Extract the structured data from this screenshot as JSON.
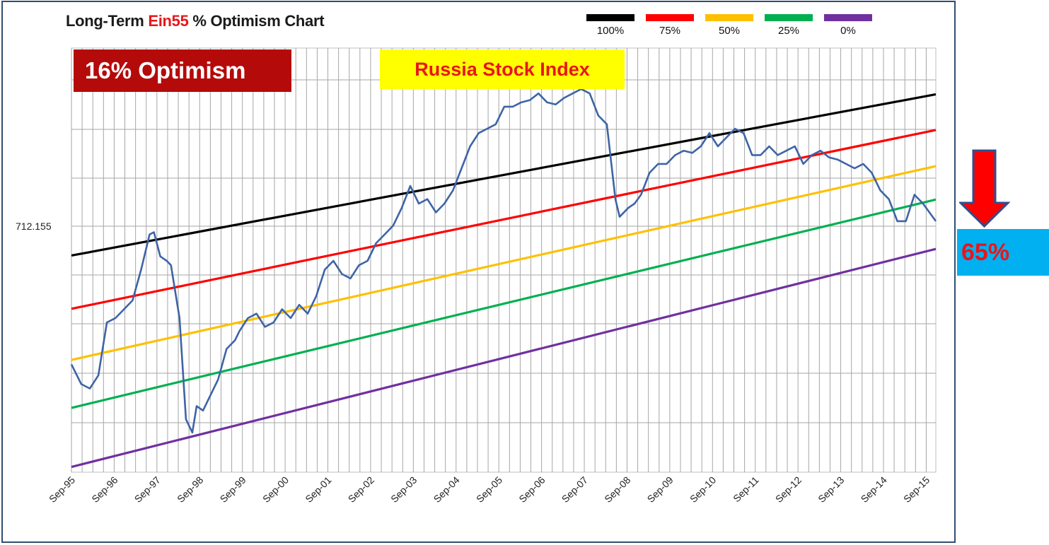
{
  "title": {
    "prefix": "Long-Term ",
    "highlight": "Ein55",
    "suffix": " % Optimism Chart"
  },
  "legend": [
    {
      "label": "100%",
      "color": "#000000"
    },
    {
      "label": "75%",
      "color": "#ff0000"
    },
    {
      "label": "50%",
      "color": "#ffc000"
    },
    {
      "label": "25%",
      "color": "#00b050"
    },
    {
      "label": "0%",
      "color": "#7030a0"
    }
  ],
  "optimism_badge": "16% Optimism",
  "index_badge": "Russia Stock Index",
  "right_badge": "65%",
  "colors": {
    "index_line": "#3e64a6",
    "grid": "#a6a6a6",
    "optimism_bg": "#b50a0a",
    "index_bg": "#ffff00",
    "right_bg": "#00b0f0",
    "arrow": "#ff0000"
  },
  "icons": {
    "arrow": "down-arrow-icon"
  },
  "chart_data": {
    "type": "line",
    "title": "Long-Term Ein55 % Optimism Chart",
    "y_tick_label": "712.155",
    "x_tick_labels": [
      "Sep-95",
      "Sep-96",
      "Sep-97",
      "Sep-98",
      "Sep-99",
      "Sep-00",
      "Sep-01",
      "Sep-02",
      "Sep-03",
      "Sep-04",
      "Sep-05",
      "Sep-06",
      "Sep-07",
      "Sep-08",
      "Sep-09",
      "Sep-10",
      "Sep-11",
      "Sep-12",
      "Sep-13",
      "Sep-14",
      "Sep-15"
    ],
    "x_range": [
      1995.67,
      2015.9
    ],
    "y_range_chart_units": [
      0,
      1000
    ],
    "grid": true,
    "legend_position": "top-right",
    "channel_lines": [
      {
        "name": "100%",
        "start": 492,
        "end": 858
      },
      {
        "name": "75%",
        "start": 371,
        "end": 777
      },
      {
        "name": "50%",
        "start": 255,
        "end": 695
      },
      {
        "name": "25%",
        "start": 146,
        "end": 619
      },
      {
        "name": "0%",
        "start": 12,
        "end": 507
      }
    ],
    "series": [
      {
        "name": "Russia Stock Index",
        "x": [
          1995.67,
          1995.9,
          1996.1,
          1996.3,
          1996.5,
          1996.7,
          1996.9,
          1997.1,
          1997.3,
          1997.5,
          1997.6,
          1997.75,
          1997.9,
          1998.0,
          1998.2,
          1998.35,
          1998.5,
          1998.6,
          1998.75,
          1998.9,
          1999.1,
          1999.3,
          1999.5,
          1999.6,
          1999.8,
          2000.0,
          2000.2,
          2000.4,
          2000.6,
          2000.8,
          2001.0,
          2001.2,
          2001.4,
          2001.6,
          2001.8,
          2002.0,
          2002.2,
          2002.4,
          2002.6,
          2002.8,
          2003.0,
          2003.2,
          2003.4,
          2003.6,
          2003.8,
          2004.0,
          2004.2,
          2004.4,
          2004.6,
          2004.8,
          2005.0,
          2005.2,
          2005.4,
          2005.6,
          2005.8,
          2006.0,
          2006.2,
          2006.4,
          2006.6,
          2006.8,
          2007.0,
          2007.2,
          2007.4,
          2007.6,
          2007.8,
          2008.0,
          2008.2,
          2008.4,
          2008.5,
          2008.7,
          2008.85,
          2009.0,
          2009.2,
          2009.4,
          2009.6,
          2009.8,
          2010.0,
          2010.2,
          2010.4,
          2010.6,
          2010.8,
          2011.0,
          2011.2,
          2011.4,
          2011.6,
          2011.8,
          2012.0,
          2012.2,
          2012.4,
          2012.6,
          2012.8,
          2013.0,
          2013.2,
          2013.4,
          2013.6,
          2013.8,
          2014.0,
          2014.2,
          2014.4,
          2014.6,
          2014.8,
          2015.0,
          2015.2,
          2015.4,
          2015.6,
          2015.9
        ],
        "y": [
          245,
          200,
          190,
          220,
          340,
          350,
          370,
          390,
          460,
          540,
          545,
          490,
          480,
          470,
          350,
          120,
          90,
          150,
          140,
          170,
          210,
          280,
          300,
          320,
          350,
          360,
          330,
          340,
          370,
          350,
          380,
          360,
          400,
          460,
          480,
          450,
          440,
          470,
          480,
          520,
          540,
          560,
          600,
          650,
          610,
          620,
          590,
          610,
          640,
          690,
          740,
          770,
          780,
          790,
          830,
          830,
          840,
          845,
          860,
          840,
          835,
          850,
          860,
          870,
          860,
          810,
          790,
          620,
          580,
          600,
          610,
          630,
          680,
          700,
          700,
          720,
          730,
          725,
          740,
          770,
          740,
          760,
          780,
          770,
          720,
          720,
          740,
          720,
          730,
          740,
          700,
          720,
          730,
          715,
          710,
          700,
          690,
          700,
          680,
          640,
          620,
          570,
          570,
          630,
          610,
          570
        ]
      }
    ]
  }
}
